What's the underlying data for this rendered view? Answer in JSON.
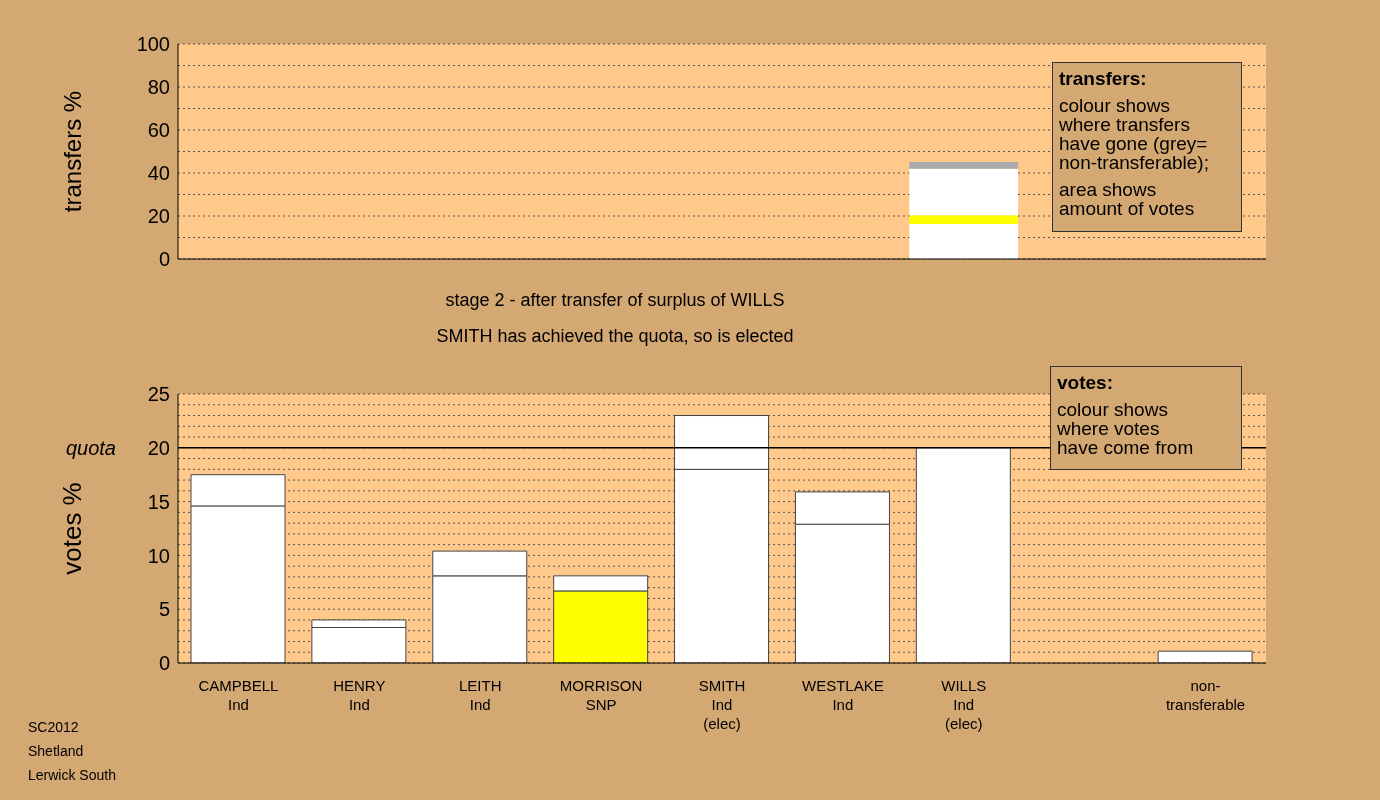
{
  "chart_data": [
    {
      "type": "bar",
      "ylabel": "transfers %",
      "categories": [
        null,
        null,
        null,
        null,
        null,
        null,
        null,
        null,
        null
      ],
      "series": [
        {
          "color": "#ffffff",
          "values": [
            null,
            null,
            null,
            null,
            null,
            null,
            16.3,
            null,
            null
          ]
        },
        {
          "color": "#ffff00",
          "values": [
            null,
            null,
            null,
            null,
            null,
            null,
            4.1,
            null,
            null
          ]
        },
        {
          "color": "#ffffff",
          "values": [
            null,
            null,
            null,
            null,
            null,
            null,
            21.6,
            null,
            null
          ]
        },
        {
          "color": "#aaaaaa",
          "values": [
            null,
            null,
            null,
            null,
            null,
            null,
            3.1,
            null,
            null
          ]
        }
      ],
      "stacked": true,
      "ylim": [
        0,
        100
      ],
      "yticks": [
        0,
        {
          "value": 10,
          "label": null
        },
        20,
        {
          "value": 30,
          "label": null
        },
        40,
        {
          "value": 50,
          "label": null
        },
        60,
        {
          "value": 70,
          "label": null
        },
        80,
        {
          "value": 90,
          "label": null
        },
        100
      ],
      "grid": true,
      "tick_labels": "y",
      "annotations": [
        "transfers:",
        "colour shows\nwhere transfers\nhave gone (grey=\nnon-transferable);",
        "area shows\namount of votes"
      ]
    },
    {
      "type": "bar",
      "title": "stage 2 - after transfer of surplus of WILLS",
      "subtitle": "SMITH has achieved the quota, so is elected",
      "ylabel": "votes %",
      "categories": [
        "CAMPBELL\nInd",
        "HENRY\nInd",
        "LEITH\nInd",
        "MORRISON\nSNP",
        "SMITH\nInd\n(elec)",
        "WESTLAKE\nInd",
        "WILLS\nInd\n(elec)",
        null,
        "non-\ntransferable"
      ],
      "series": [
        {
          "colors": [
            "#ffffff",
            "#ffffff",
            "#ffffff",
            "#ffff00",
            "#ffffff",
            "#ffffff",
            "#ffffff",
            null,
            null
          ],
          "values": [
            14.6,
            3.3,
            8.1,
            6.7,
            18.0,
            12.9,
            20.0,
            null,
            null
          ]
        },
        {
          "color": "#ffffff",
          "values": [
            2.9,
            0.7,
            2.3,
            1.4,
            5.0,
            3.0,
            null,
            null,
            1.1
          ]
        }
      ],
      "stacked": true,
      "ylim": [
        0,
        25
      ],
      "yticks": [
        0,
        {
          "value": 1,
          "label": null
        },
        {
          "value": 2,
          "label": null
        },
        {
          "value": 3,
          "label": null
        },
        {
          "value": 4,
          "label": null
        },
        5,
        {
          "value": 6,
          "label": null
        },
        {
          "value": 7,
          "label": null
        },
        {
          "value": 8,
          "label": null
        },
        {
          "value": 9,
          "label": null
        },
        10,
        {
          "value": 11,
          "label": null
        },
        {
          "value": 12,
          "label": null
        },
        {
          "value": 13,
          "label": null
        },
        {
          "value": 14,
          "label": null
        },
        15,
        {
          "value": 16,
          "label": null
        },
        {
          "value": 17,
          "label": null
        },
        {
          "value": 18,
          "label": null
        },
        {
          "value": 19,
          "label": null
        },
        20,
        {
          "value": 21,
          "label": null
        },
        {
          "value": 22,
          "label": null
        },
        {
          "value": 23,
          "label": null
        },
        {
          "value": 24,
          "label": null
        },
        25
      ],
      "grid": true,
      "ref_lines": [
        {
          "axis": "y",
          "value": 20,
          "label": "quota"
        }
      ],
      "annotations": [
        "votes:",
        "colour shows\nwhere votes\nhave come from",
        "SC2012",
        "Shetland",
        "Lerwick South"
      ]
    }
  ]
}
